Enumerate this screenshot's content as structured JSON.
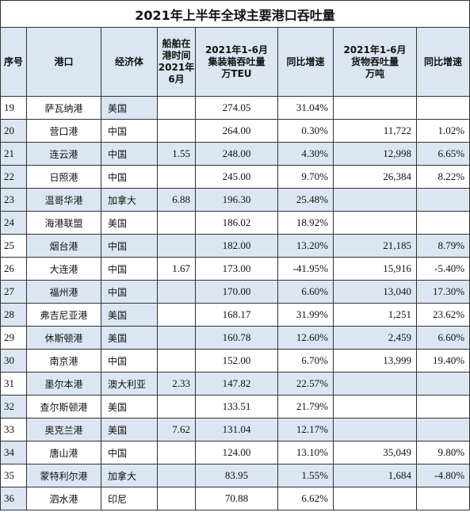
{
  "title": "2021年上半年全球主要港口吞吐量",
  "headers": {
    "seq": "序号",
    "port": "港口",
    "economy": "经济体",
    "berth_lines": [
      "船舶在",
      "港时间",
      "2021年",
      "6月"
    ],
    "teu_lines": [
      "2021年1-6月",
      "集装箱吞吐量",
      "万TEU"
    ],
    "teu_yoy": "同比增速",
    "cargo_lines": [
      "2021年1-6月",
      "货物吞吐量",
      "万吨"
    ],
    "cargo_yoy": "同比增速"
  },
  "rows": [
    {
      "seq": "19",
      "port": "萨瓦纳港",
      "economy": "美国",
      "berth": "",
      "teu": "274.05",
      "teu_yoy": "31.04%",
      "cargo": "",
      "cargo_yoy": ""
    },
    {
      "seq": "20",
      "port": "营口港",
      "economy": "中国",
      "berth": "",
      "teu": "264.00",
      "teu_yoy": "0.30%",
      "cargo": "11,722",
      "cargo_yoy": "1.02%"
    },
    {
      "seq": "21",
      "port": "连云港",
      "economy": "中国",
      "berth": "1.55",
      "teu": "248.00",
      "teu_yoy": "4.30%",
      "cargo": "12,998",
      "cargo_yoy": "6.65%"
    },
    {
      "seq": "22",
      "port": "日照港",
      "economy": "中国",
      "berth": "",
      "teu": "245.00",
      "teu_yoy": "9.70%",
      "cargo": "26,384",
      "cargo_yoy": "8.22%"
    },
    {
      "seq": "23",
      "port": "温哥华港",
      "economy": "加拿大",
      "berth": "6.88",
      "teu": "196.30",
      "teu_yoy": "25.48%",
      "cargo": "",
      "cargo_yoy": ""
    },
    {
      "seq": "24",
      "port": "海港联盟",
      "economy": "美国",
      "berth": "",
      "teu": "186.02",
      "teu_yoy": "18.92%",
      "cargo": "",
      "cargo_yoy": ""
    },
    {
      "seq": "25",
      "port": "烟台港",
      "economy": "中国",
      "berth": "",
      "teu": "182.00",
      "teu_yoy": "13.20%",
      "cargo": "21,185",
      "cargo_yoy": "8.79%"
    },
    {
      "seq": "26",
      "port": "大连港",
      "economy": "中国",
      "berth": "1.67",
      "teu": "173.00",
      "teu_yoy": "-41.95%",
      "cargo": "15,916",
      "cargo_yoy": "-5.40%"
    },
    {
      "seq": "27",
      "port": "福州港",
      "economy": "中国",
      "berth": "",
      "teu": "170.00",
      "teu_yoy": "6.60%",
      "cargo": "13,040",
      "cargo_yoy": "17.30%"
    },
    {
      "seq": "28",
      "port": "弗吉尼亚港",
      "economy": "美国",
      "berth": "",
      "teu": "168.17",
      "teu_yoy": "31.99%",
      "cargo": "1,251",
      "cargo_yoy": "23.62%"
    },
    {
      "seq": "29",
      "port": "休斯顿港",
      "economy": "美国",
      "berth": "",
      "teu": "160.78",
      "teu_yoy": "12.60%",
      "cargo": "2,459",
      "cargo_yoy": "6.60%"
    },
    {
      "seq": "30",
      "port": "南京港",
      "economy": "中国",
      "berth": "",
      "teu": "152.00",
      "teu_yoy": "6.70%",
      "cargo": "13,999",
      "cargo_yoy": "19.40%"
    },
    {
      "seq": "31",
      "port": "墨尔本港",
      "economy": "澳大利亚",
      "berth": "2.33",
      "teu": "147.82",
      "teu_yoy": "22.57%",
      "cargo": "",
      "cargo_yoy": ""
    },
    {
      "seq": "32",
      "port": "查尔斯顿港",
      "economy": "美国",
      "berth": "",
      "teu": "133.51",
      "teu_yoy": "21.79%",
      "cargo": "",
      "cargo_yoy": ""
    },
    {
      "seq": "33",
      "port": "奥克兰港",
      "economy": "美国",
      "berth": "7.62",
      "teu": "131.04",
      "teu_yoy": "12.17%",
      "cargo": "",
      "cargo_yoy": ""
    },
    {
      "seq": "34",
      "port": "唐山港",
      "economy": "中国",
      "berth": "",
      "teu": "124.00",
      "teu_yoy": "13.10%",
      "cargo": "35,049",
      "cargo_yoy": "9.80%"
    },
    {
      "seq": "35",
      "port": "蒙特利尔港",
      "economy": "加拿大",
      "berth": "",
      "teu": "83.95",
      "teu_yoy": "1.55%",
      "cargo": "1,684",
      "cargo_yoy": "-4.80%"
    },
    {
      "seq": "36",
      "port": "泗水港",
      "economy": "印尼",
      "berth": "",
      "teu": "70.88",
      "teu_yoy": "6.62%",
      "cargo": "",
      "cargo_yoy": ""
    }
  ]
}
